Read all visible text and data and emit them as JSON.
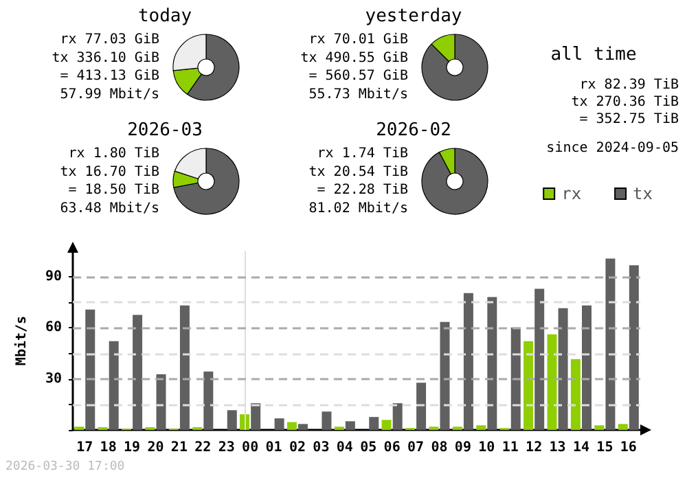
{
  "chart_data": [
    {
      "type": "donut",
      "title": "today",
      "categories": [
        null,
        null,
        null
      ],
      "values": [
        59.7,
        13.7,
        26.6
      ],
      "colors": [
        "#606060",
        "#8fce00",
        "#eeeeee"
      ],
      "annotations": [
        "rx 77.03 GiB",
        "tx 336.10 GiB",
        "= 413.13 GiB",
        "57.99 Mbit/s"
      ]
    },
    {
      "type": "donut",
      "title": "yesterday",
      "categories": [
        null,
        null
      ],
      "values": [
        87.5,
        12.5
      ],
      "colors": [
        "#606060",
        "#8fce00"
      ],
      "annotations": [
        "rx 70.01 GiB",
        "tx 490.55 GiB",
        "= 560.57 GiB",
        "55.73 Mbit/s"
      ]
    },
    {
      "type": "donut",
      "title": "2026-03",
      "categories": [
        null,
        null,
        null
      ],
      "values": [
        72,
        8,
        20
      ],
      "colors": [
        "#606060",
        "#8fce00",
        "#eeeeee"
      ],
      "annotations": [
        "rx 1.80 TiB",
        "tx 16.70 TiB",
        "= 18.50 TiB",
        "63.48 Mbit/s"
      ]
    },
    {
      "type": "donut",
      "title": "2026-02",
      "categories": [
        null,
        null
      ],
      "values": [
        92.2,
        7.8
      ],
      "colors": [
        "#606060",
        "#8fce00"
      ],
      "annotations": [
        "rx 1.74 TiB",
        "tx 20.54 TiB",
        "= 22.28 TiB",
        "81.02 Mbit/s"
      ]
    },
    {
      "type": "other",
      "title": "all time",
      "annotations": [
        "rx 82.39 TiB",
        "tx 270.36 TiB",
        "= 352.75 TiB",
        "since 2024-09-05"
      ]
    },
    {
      "type": "bar",
      "ylabel": "Mbit/s",
      "categories": [
        "17",
        "18",
        "19",
        "20",
        "21",
        "22",
        "23",
        "00",
        "01",
        "02",
        "03",
        "04",
        "05",
        "06",
        "07",
        "08",
        "09",
        "10",
        "11",
        "12",
        "13",
        "14",
        "15",
        "16"
      ],
      "series": [
        {
          "name": "rx",
          "color": "#8fce00",
          "values": [
            1.9,
            1.6,
            0.8,
            1.6,
            0.8,
            1.6,
            0,
            9.2,
            0,
            4.6,
            0,
            1.9,
            0,
            5.9,
            1.1,
            1.9,
            1.9,
            2.7,
            1.1,
            52.2,
            56.2,
            41.6,
            2.7,
            3.5
          ]
        },
        {
          "name": "tx",
          "color": "#606060",
          "values": [
            70.8,
            52.2,
            67.6,
            32.7,
            73.2,
            34.3,
            11.6,
            15.7,
            6.8,
            3.5,
            10.8,
            5.1,
            7.6,
            15.7,
            27.8,
            63.5,
            80.5,
            78.1,
            60.3,
            83,
            71.6,
            73.2,
            100.8,
            96.8
          ]
        }
      ],
      "ylim": [
        0,
        105
      ],
      "yticks": [
        {
          "value": 0,
          "label": null
        },
        {
          "value": 15,
          "label": null
        },
        30,
        {
          "value": 45,
          "label": null
        },
        60,
        {
          "value": 75,
          "label": null
        },
        90
      ],
      "grid": "y",
      "legend": "top right",
      "ref_lines": [
        {
          "axis": "x",
          "value": "00",
          "color": "#dddddd"
        }
      ],
      "annotations": [
        "2026-03-30 17:00"
      ]
    }
  ]
}
